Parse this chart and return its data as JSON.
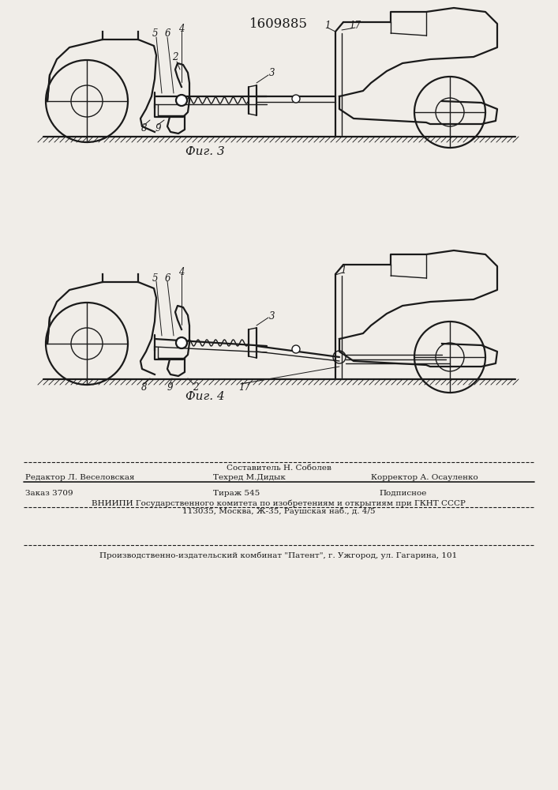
{
  "title": "1609885",
  "title_fontsize": 12,
  "fig3_caption": "Фиг. 3",
  "fig4_caption": "Фиг. 4",
  "caption_fontsize": 11,
  "bg_color": "#f0ede8",
  "line_color": "#1a1a1a",
  "footer_line1_left": "Редактор Л. Веселовская",
  "footer_line1_center_top": "Составитель Н. Соболев",
  "footer_line1_center_bot": "Техред М.Дидык",
  "footer_line1_right": "Корректор А. Осауленко",
  "footer_line2_left": "Заказ 3709",
  "footer_line2_center": "Тираж 545",
  "footer_line2_right": "Подписное",
  "footer_line3": "ВНИИПИ Государственного комитета по изобретениям и открытиям при ГКНТ СССР",
  "footer_line4": "113035, Москва, Ж-35, Раушская наб., д. 4/5",
  "footer_line5": "Производственно-издательский комбинат \"Патент\", г. Ужгород, ул. Гагарина, 101",
  "footer_fontsize": 7.5
}
